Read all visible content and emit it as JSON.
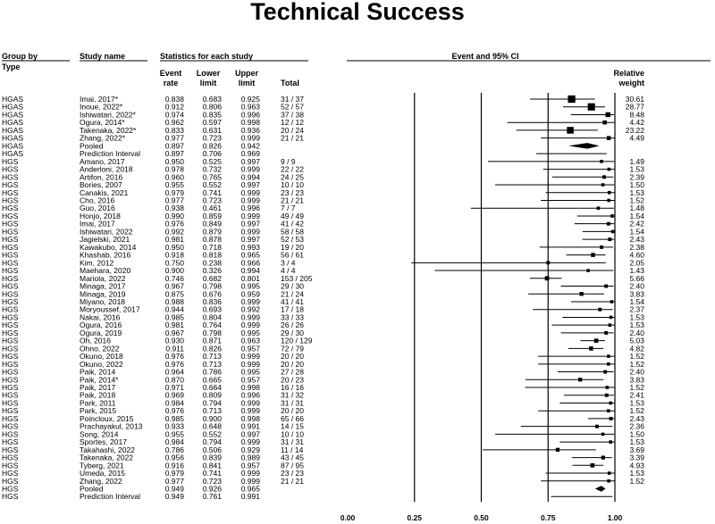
{
  "title": "Technical Success",
  "headers": {
    "group_by_1": "Group by",
    "group_by_2": "Type",
    "study_name": "Study name",
    "statistics": "Statistics for each study",
    "event_rate_1": "Event",
    "event_rate_2": "rate",
    "lower_1": "Lower",
    "lower_2": "limit",
    "upper_1": "Upper",
    "upper_2": "limit",
    "total": "Total",
    "plot": "Event and 95% CI",
    "weight_1": "Relative",
    "weight_2": "weight"
  },
  "chart_data": {
    "type": "forest",
    "x_ticks": [
      "0.00",
      "0.25",
      "0.50",
      "0.75",
      "1.00"
    ],
    "xlim": [
      0,
      1
    ],
    "reference_lines": [
      0.25,
      0.5,
      0.75,
      1.0
    ],
    "rows": [
      {
        "group": "HGAS",
        "study": "Imai, 2017*",
        "rate": "0.838",
        "lower": "0.683",
        "upper": "0.925",
        "total": "31 / 37",
        "weight": "30.61"
      },
      {
        "group": "HGAS",
        "study": "Inoue, 2022*",
        "rate": "0.912",
        "lower": "0.806",
        "upper": "0.963",
        "total": "52 / 57",
        "weight": "28.77"
      },
      {
        "group": "HGAS",
        "study": "Ishiwatari, 2022*",
        "rate": "0.974",
        "lower": "0.835",
        "upper": "0.996",
        "total": "37 / 38",
        "weight": "8.48"
      },
      {
        "group": "HGAS",
        "study": "Ogura, 2014*",
        "rate": "0.962",
        "lower": "0.597",
        "upper": "0.998",
        "total": "12 / 12",
        "weight": "4.42"
      },
      {
        "group": "HGAS",
        "study": "Takenaka, 2022*",
        "rate": "0.833",
        "lower": "0.631",
        "upper": "0.936",
        "total": "20 / 24",
        "weight": "23.22"
      },
      {
        "group": "HGAS",
        "study": "Zhang, 2022*",
        "rate": "0.977",
        "lower": "0.723",
        "upper": "0.999",
        "total": "21 / 21",
        "weight": "4.49"
      },
      {
        "group": "HGAS",
        "study": "Pooled",
        "rate": "0.897",
        "lower": "0.826",
        "upper": "0.942",
        "total": "",
        "weight": "",
        "kind": "pooled"
      },
      {
        "group": "HGAS",
        "study": "Prediction Interval",
        "rate": "0.897",
        "lower": "0.706",
        "upper": "0.969",
        "total": "",
        "weight": "",
        "kind": "pi"
      },
      {
        "group": "HGS",
        "study": "Amano, 2017",
        "rate": "0.950",
        "lower": "0.525",
        "upper": "0.997",
        "total": "9 / 9",
        "weight": "1.49"
      },
      {
        "group": "HGS",
        "study": "Anderloni, 2018",
        "rate": "0.978",
        "lower": "0.732",
        "upper": "0.999",
        "total": "22 / 22",
        "weight": "1.53"
      },
      {
        "group": "HGS",
        "study": "Artifon, 2016",
        "rate": "0.960",
        "lower": "0.765",
        "upper": "0.994",
        "total": "24 / 25",
        "weight": "2.39"
      },
      {
        "group": "HGS",
        "study": "Bories, 2007",
        "rate": "0.955",
        "lower": "0.552",
        "upper": "0.997",
        "total": "10 / 10",
        "weight": "1.50"
      },
      {
        "group": "HGS",
        "study": "Canakis, 2021",
        "rate": "0.979",
        "lower": "0.741",
        "upper": "0.999",
        "total": "23 / 23",
        "weight": "1.53"
      },
      {
        "group": "HGS",
        "study": "Cho, 2016",
        "rate": "0.977",
        "lower": "0.723",
        "upper": "0.999",
        "total": "21 / 21",
        "weight": "1.52"
      },
      {
        "group": "HGS",
        "study": "Guo, 2016",
        "rate": "0.938",
        "lower": "0.461",
        "upper": "0.996",
        "total": "7 / 7",
        "weight": "1.48"
      },
      {
        "group": "HGS",
        "study": "Honjo, 2018",
        "rate": "0.990",
        "lower": "0.859",
        "upper": "0.999",
        "total": "49 / 49",
        "weight": "1.54"
      },
      {
        "group": "HGS",
        "study": "Imai, 2017",
        "rate": "0.976",
        "lower": "0.849",
        "upper": "0.997",
        "total": "41 / 42",
        "weight": "2.42"
      },
      {
        "group": "HGS",
        "study": "Ishiwatari, 2022",
        "rate": "0.992",
        "lower": "0.879",
        "upper": "0.999",
        "total": "58 / 58",
        "weight": "1.54"
      },
      {
        "group": "HGS",
        "study": "Jagielski, 2021",
        "rate": "0.981",
        "lower": "0.878",
        "upper": "0.997",
        "total": "52 / 53",
        "weight": "2.43"
      },
      {
        "group": "HGS",
        "study": "Kawakubo, 2014",
        "rate": "0.950",
        "lower": "0.718",
        "upper": "0.993",
        "total": "19 / 20",
        "weight": "2.38"
      },
      {
        "group": "HGS",
        "study": "Khashab, 2016",
        "rate": "0.918",
        "lower": "0.818",
        "upper": "0.965",
        "total": "56 / 61",
        "weight": "4.60"
      },
      {
        "group": "HGS",
        "study": "Kim, 2012",
        "rate": "0.750",
        "lower": "0.238",
        "upper": "0.966",
        "total": "3 / 4",
        "weight": "2.05"
      },
      {
        "group": "HGS",
        "study": "Maehara, 2020",
        "rate": "0.900",
        "lower": "0.326",
        "upper": "0.994",
        "total": "4 / 4",
        "weight": "1.43"
      },
      {
        "group": "HGS",
        "study": "Mariola, 2022",
        "rate": "0.746",
        "lower": "0.682",
        "upper": "0.801",
        "total": "153 / 205",
        "weight": "5.66"
      },
      {
        "group": "HGS",
        "study": "Minaga, 2017",
        "rate": "0.967",
        "lower": "0.798",
        "upper": "0.995",
        "total": "29 / 30",
        "weight": "2.40"
      },
      {
        "group": "HGS",
        "study": "Minaga, 2019",
        "rate": "0.875",
        "lower": "0.676",
        "upper": "0.959",
        "total": "21 / 24",
        "weight": "3.83"
      },
      {
        "group": "HGS",
        "study": "Miyano, 2018",
        "rate": "0.988",
        "lower": "0.836",
        "upper": "0.999",
        "total": "41 / 41",
        "weight": "1.54"
      },
      {
        "group": "HGS",
        "study": "Moryoussef, 2017",
        "rate": "0.944",
        "lower": "0.693",
        "upper": "0.992",
        "total": "17 / 18",
        "weight": "2.37"
      },
      {
        "group": "HGS",
        "study": "Nakai, 2016",
        "rate": "0.985",
        "lower": "0.804",
        "upper": "0.999",
        "total": "33 / 33",
        "weight": "1.53"
      },
      {
        "group": "HGS",
        "study": "Ogura, 2016",
        "rate": "0.981",
        "lower": "0.764",
        "upper": "0.999",
        "total": "26 / 26",
        "weight": "1.53"
      },
      {
        "group": "HGS",
        "study": "Ogura, 2019",
        "rate": "0.967",
        "lower": "0.798",
        "upper": "0.995",
        "total": "29 / 30",
        "weight": "2.40"
      },
      {
        "group": "HGS",
        "study": "Oh, 2016",
        "rate": "0.930",
        "lower": "0.871",
        "upper": "0.963",
        "total": "120 / 129",
        "weight": "5.03"
      },
      {
        "group": "HGS",
        "study": "Ohno, 2022",
        "rate": "0.911",
        "lower": "0.826",
        "upper": "0.957",
        "total": "72 / 79",
        "weight": "4.82"
      },
      {
        "group": "HGS",
        "study": "Okuno, 2018",
        "rate": "0.976",
        "lower": "0.713",
        "upper": "0.999",
        "total": "20 / 20",
        "weight": "1.52"
      },
      {
        "group": "HGS",
        "study": "Okuno, 2022",
        "rate": "0.976",
        "lower": "0.713",
        "upper": "0.999",
        "total": "20 / 20",
        "weight": "1.52"
      },
      {
        "group": "HGS",
        "study": "Paik, 2014",
        "rate": "0.964",
        "lower": "0.786",
        "upper": "0.995",
        "total": "27 / 28",
        "weight": "2.40"
      },
      {
        "group": "HGS",
        "study": "Paik, 2014*",
        "rate": "0.870",
        "lower": "0.665",
        "upper": "0.957",
        "total": "20 / 23",
        "weight": "3.83"
      },
      {
        "group": "HGS",
        "study": "Paik, 2017",
        "rate": "0.971",
        "lower": "0.664",
        "upper": "0.998",
        "total": "16 / 16",
        "weight": "1.52"
      },
      {
        "group": "HGS",
        "study": "Paik, 2018",
        "rate": "0.969",
        "lower": "0.809",
        "upper": "0.996",
        "total": "31 / 32",
        "weight": "2.41"
      },
      {
        "group": "HGS",
        "study": "Park, 2011",
        "rate": "0.984",
        "lower": "0.794",
        "upper": "0.999",
        "total": "31 / 31",
        "weight": "1.53"
      },
      {
        "group": "HGS",
        "study": "Park, 2015",
        "rate": "0.976",
        "lower": "0.713",
        "upper": "0.999",
        "total": "20 / 20",
        "weight": "1.52"
      },
      {
        "group": "HGS",
        "study": "Poincloux, 2015",
        "rate": "0.985",
        "lower": "0.900",
        "upper": "0.998",
        "total": "65 / 66",
        "weight": "2.43"
      },
      {
        "group": "HGS",
        "study": "Prachayakul, 2013",
        "rate": "0.933",
        "lower": "0.648",
        "upper": "0.991",
        "total": "14 / 15",
        "weight": "2.36"
      },
      {
        "group": "HGS",
        "study": "Song, 2014",
        "rate": "0.955",
        "lower": "0.552",
        "upper": "0.997",
        "total": "10 / 10",
        "weight": "1.50"
      },
      {
        "group": "HGS",
        "study": "Sportes, 2017",
        "rate": "0.984",
        "lower": "0.794",
        "upper": "0.999",
        "total": "31 / 31",
        "weight": "1.53"
      },
      {
        "group": "HGS",
        "study": "Takahashi, 2022",
        "rate": "0.786",
        "lower": "0.506",
        "upper": "0.929",
        "total": "11 / 14",
        "weight": "3.69"
      },
      {
        "group": "HGS",
        "study": "Takenaka, 2022",
        "rate": "0.956",
        "lower": "0.839",
        "upper": "0.989",
        "total": "43 / 45",
        "weight": "3.39"
      },
      {
        "group": "HGS",
        "study": "Tyberg, 2021",
        "rate": "0.916",
        "lower": "0.841",
        "upper": "0.957",
        "total": "87 / 95",
        "weight": "4.93"
      },
      {
        "group": "HGS",
        "study": "Umeda, 2015",
        "rate": "0.979",
        "lower": "0.741",
        "upper": "0.999",
        "total": "23 / 23",
        "weight": "1.53"
      },
      {
        "group": "HGS",
        "study": "Zhang, 2022",
        "rate": "0.977",
        "lower": "0.723",
        "upper": "0.999",
        "total": "21 / 21",
        "weight": "1.52"
      },
      {
        "group": "HGS",
        "study": "Pooled",
        "rate": "0.949",
        "lower": "0.926",
        "upper": "0.965",
        "total": "",
        "weight": "",
        "kind": "pooled"
      },
      {
        "group": "HGS",
        "study": "Prediction Interval",
        "rate": "0.949",
        "lower": "0.761",
        "upper": "0.991",
        "total": "",
        "weight": "",
        "kind": "pi"
      }
    ]
  }
}
